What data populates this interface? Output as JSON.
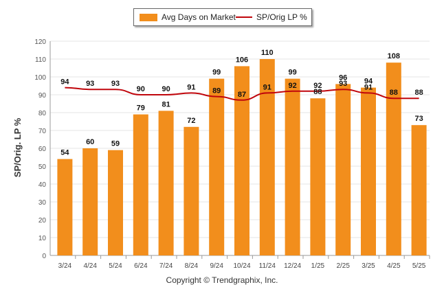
{
  "legend": {
    "bar_label": "Avg Days on Market",
    "line_label": "SP/Orig LP %"
  },
  "ylabel": "SP/Orig. LP %",
  "copyright": "Copyright © Trendgraphix, Inc.",
  "colors": {
    "bar": "#f28e1c",
    "line": "#c0050b",
    "grid": "#e6e6e6",
    "axis": "#999999"
  },
  "chart_data": {
    "type": "bar",
    "categories": [
      "3/24",
      "4/24",
      "5/24",
      "6/24",
      "7/24",
      "8/24",
      "9/24",
      "10/24",
      "11/24",
      "12/24",
      "1/25",
      "2/25",
      "3/25",
      "4/25",
      "5/25"
    ],
    "series": [
      {
        "name": "Avg Days on Market",
        "type": "bar",
        "values": [
          54,
          60,
          59,
          79,
          81,
          72,
          99,
          106,
          110,
          99,
          88,
          96,
          94,
          108,
          73
        ]
      },
      {
        "name": "SP/Orig LP %",
        "type": "line",
        "values": [
          94,
          93,
          93,
          90,
          90,
          91,
          89,
          87,
          91,
          92,
          92,
          93,
          91,
          88,
          88
        ]
      }
    ],
    "ylim": [
      0,
      120
    ],
    "yticks": [
      0,
      10,
      20,
      30,
      40,
      50,
      60,
      70,
      80,
      90,
      100,
      110,
      120
    ],
    "ylabel": "SP/Orig. LP %",
    "grid": true,
    "legend": "top-center"
  }
}
